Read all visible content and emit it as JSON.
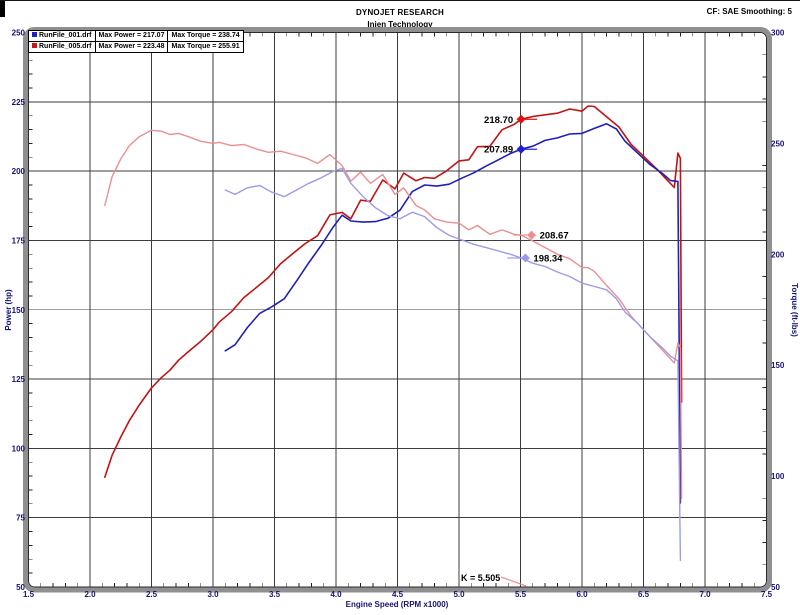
{
  "header": {
    "title": "DYNOJET RESEARCH",
    "subtitle": "Injen Technology",
    "settings": "CF: SAE  Smoothing: 5"
  },
  "legend": {
    "rows": [
      {
        "marker_color": "#2020c8",
        "file": "RunFile_001.drf",
        "max_power": "Max Power = 217.07",
        "max_torque": "Max Torque = 238.74"
      },
      {
        "marker_color": "#d01414",
        "file": "RunFile_005.drf",
        "max_power": "Max Power = 223.48",
        "max_torque": "Max Torque = 255.91"
      }
    ]
  },
  "chart_data": {
    "type": "line",
    "xlabel": "Engine Speed (RPM x1000)",
    "ylabel_left": "Power (hp)",
    "ylabel_right": "Torque (ft-lbs)",
    "xlim": [
      1.5,
      7.5
    ],
    "ylim_left": [
      50,
      250
    ],
    "ylim_right": [
      50,
      300
    ],
    "x_ticks": [
      1.5,
      2.0,
      2.5,
      3.0,
      3.5,
      4.0,
      4.5,
      5.0,
      5.5,
      6.0,
      6.5,
      7.0,
      7.5
    ],
    "x_minor_step": 0.1,
    "y_left_ticks": [
      250,
      225,
      200,
      175,
      150,
      125,
      100,
      75,
      50
    ],
    "y_left_minor_step": 5,
    "y_right_ticks": [
      300,
      250,
      200,
      150,
      100,
      50
    ],
    "y_right_minor_step": 10,
    "grid": "major",
    "legend_position": "top-left",
    "series": [
      {
        "slug": "power-curve-run005",
        "name": "RunFile_005 Power (hp)",
        "axis": "left",
        "color": "#c01414",
        "width": 1.6,
        "x": [
          2.12,
          2.18,
          2.25,
          2.32,
          2.4,
          2.5,
          2.58,
          2.65,
          2.72,
          2.8,
          2.9,
          3.0,
          3.05,
          3.15,
          3.25,
          3.35,
          3.45,
          3.55,
          3.65,
          3.75,
          3.85,
          3.95,
          4.05,
          4.12,
          4.2,
          4.28,
          4.38,
          4.48,
          4.55,
          4.65,
          4.72,
          4.8,
          4.9,
          5.0,
          5.08,
          5.15,
          5.25,
          5.35,
          5.45,
          5.505,
          5.6,
          5.7,
          5.8,
          5.9,
          6.0,
          6.05,
          6.1,
          6.2,
          6.3,
          6.4,
          6.5,
          6.6,
          6.7,
          6.75,
          6.78,
          6.8,
          6.81
        ],
        "y": [
          89.6,
          97.5,
          104.1,
          110.0,
          115.6,
          121.8,
          125.5,
          128.2,
          131.8,
          134.9,
          138.6,
          142.8,
          145.5,
          149.3,
          154.4,
          157.9,
          161.6,
          166.6,
          170.3,
          173.9,
          176.7,
          184.2,
          185.1,
          182.8,
          189.5,
          189.1,
          196.8,
          193.6,
          199.3,
          196.5,
          197.7,
          197.4,
          200.1,
          203.7,
          204.1,
          208.8,
          208.9,
          214.9,
          216.9,
          218.7,
          219.7,
          220.3,
          220.9,
          222.4,
          221.6,
          223.48,
          223.3,
          219.6,
          215.9,
          209.6,
          205.4,
          201.1,
          196.4,
          194.1,
          206.5,
          204.6,
          116.7
        ]
      },
      {
        "slug": "power-curve-run001",
        "name": "RunFile_001 Power (hp)",
        "axis": "left",
        "color": "#2020b4",
        "width": 1.6,
        "x": [
          3.1,
          3.18,
          3.28,
          3.38,
          3.48,
          3.58,
          3.68,
          3.78,
          3.88,
          3.98,
          4.05,
          4.12,
          4.22,
          4.32,
          4.42,
          4.52,
          4.62,
          4.72,
          4.82,
          4.92,
          5.02,
          5.12,
          5.22,
          5.32,
          5.42,
          5.505,
          5.6,
          5.7,
          5.8,
          5.9,
          6.0,
          6.1,
          6.2,
          6.28,
          6.35,
          6.45,
          6.55,
          6.65,
          6.72,
          6.78,
          6.8
        ],
        "y": [
          135.2,
          137.4,
          143.6,
          148.7,
          151.1,
          154.0,
          160.4,
          167.0,
          173.2,
          180.0,
          184.1,
          182.0,
          181.6,
          181.8,
          183.0,
          185.9,
          192.6,
          195.0,
          194.6,
          195.3,
          197.4,
          199.4,
          201.8,
          204.1,
          206.4,
          207.89,
          209.0,
          211.1,
          212.0,
          213.4,
          213.6,
          215.4,
          217.07,
          215.2,
          210.8,
          206.6,
          202.5,
          199.3,
          196.6,
          196.3,
          80.3
        ]
      },
      {
        "slug": "torque-curve-run005",
        "name": "RunFile_005 Torque (ft-lbs)",
        "axis": "right",
        "color": "#e89090",
        "width": 1.4,
        "x": [
          2.12,
          2.18,
          2.25,
          2.32,
          2.4,
          2.5,
          2.58,
          2.65,
          2.72,
          2.8,
          2.9,
          3.0,
          3.05,
          3.15,
          3.25,
          3.35,
          3.45,
          3.55,
          3.65,
          3.75,
          3.85,
          3.95,
          4.05,
          4.12,
          4.2,
          4.28,
          4.38,
          4.48,
          4.55,
          4.65,
          4.72,
          4.8,
          4.9,
          5.0,
          5.08,
          5.15,
          5.25,
          5.35,
          5.45,
          5.505,
          5.6,
          5.7,
          5.8,
          5.9,
          6.0,
          6.05,
          6.1,
          6.2,
          6.3,
          6.4,
          6.5,
          6.6,
          6.7,
          6.75,
          6.78,
          6.8,
          6.81
        ],
        "y": [
          222,
          235,
          243,
          249,
          253,
          255.91,
          255.5,
          254,
          254.5,
          253,
          251,
          250,
          250.5,
          249,
          249.5,
          247.5,
          246,
          246.5,
          245,
          243.5,
          241,
          245,
          240,
          233,
          237,
          232,
          236,
          227,
          230,
          222,
          220,
          216,
          214.5,
          214,
          211,
          213,
          209,
          211,
          209,
          208.67,
          206,
          203,
          200,
          198,
          194,
          194,
          192.3,
          186,
          180,
          172,
          166,
          160,
          154,
          151,
          160,
          158,
          90
        ]
      },
      {
        "slug": "torque-curve-run001",
        "name": "RunFile_001 Torque (ft-lbs)",
        "axis": "right",
        "color": "#9c9ce6",
        "width": 1.4,
        "x": [
          3.1,
          3.18,
          3.28,
          3.38,
          3.48,
          3.58,
          3.68,
          3.78,
          3.88,
          3.98,
          4.05,
          4.12,
          4.22,
          4.32,
          4.42,
          4.52,
          4.62,
          4.72,
          4.82,
          4.92,
          5.02,
          5.12,
          5.22,
          5.32,
          5.42,
          5.505,
          5.6,
          5.7,
          5.8,
          5.9,
          6.0,
          6.1,
          6.2,
          6.28,
          6.35,
          6.45,
          6.55,
          6.65,
          6.72,
          6.78,
          6.8
        ],
        "y": [
          229,
          227,
          230,
          231,
          228,
          226,
          229,
          232,
          234.5,
          237.5,
          238.74,
          232,
          226,
          221,
          217.5,
          216,
          219,
          217,
          212,
          208.5,
          206.5,
          204.5,
          203,
          201.5,
          200,
          198.34,
          196,
          194.5,
          192,
          190,
          187,
          185.5,
          184,
          180,
          174,
          169,
          163,
          158,
          154,
          152,
          62
        ]
      }
    ],
    "cursor_markers": [
      {
        "label": "218.70",
        "value": 218.7,
        "x": 5.505,
        "axis": "left",
        "color": "#e01010",
        "label_side": "left"
      },
      {
        "label": "207.89",
        "value": 207.89,
        "x": 5.505,
        "axis": "left",
        "color": "#2020d8",
        "label_side": "left"
      },
      {
        "label": "208.67",
        "value": 208.67,
        "x": 5.59,
        "axis": "right",
        "color": "#ee8e8e",
        "label_side": "right"
      },
      {
        "label": "198.34",
        "value": 198.34,
        "x": 5.54,
        "axis": "right",
        "color": "#9c9ce6",
        "label_side": "right"
      }
    ],
    "cursor_annotation": {
      "text": "K = 5.505",
      "rpm": 5.505
    }
  }
}
